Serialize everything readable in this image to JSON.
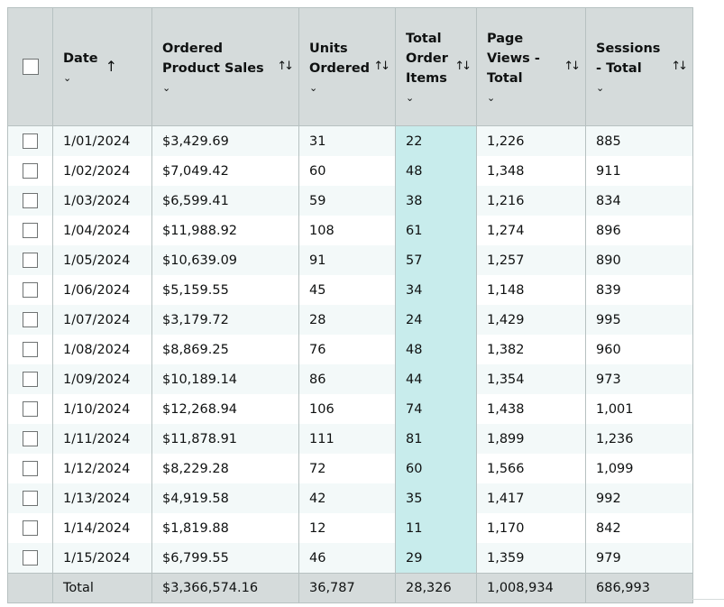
{
  "columns": [
    {
      "label": "Date",
      "sort": "asc"
    },
    {
      "label": "Ordered Product Sales",
      "sort": "both"
    },
    {
      "label": "Units Ordered",
      "sort": "both"
    },
    {
      "label": "Total Order Items",
      "sort": "both"
    },
    {
      "label": "Page Views - Total",
      "sort": "both"
    },
    {
      "label": "Sessions - Total",
      "sort": "both"
    }
  ],
  "icons": {
    "chevron": "chevron-down-icon",
    "sort_asc": "arrow-up-icon",
    "sort_both": "sort-arrows-icon"
  },
  "colors": {
    "header_bg": "#d5dbdb",
    "row_alt_bg": "#f3f9f9",
    "highlight_col": "#c8ecec"
  },
  "rows": [
    [
      "1/01/2024",
      "$3,429.69",
      "31",
      "22",
      "1,226",
      "885"
    ],
    [
      "1/02/2024",
      "$7,049.42",
      "60",
      "48",
      "1,348",
      "911"
    ],
    [
      "1/03/2024",
      "$6,599.41",
      "59",
      "38",
      "1,216",
      "834"
    ],
    [
      "1/04/2024",
      "$11,988.92",
      "108",
      "61",
      "1,274",
      "896"
    ],
    [
      "1/05/2024",
      "$10,639.09",
      "91",
      "57",
      "1,257",
      "890"
    ],
    [
      "1/06/2024",
      "$5,159.55",
      "45",
      "34",
      "1,148",
      "839"
    ],
    [
      "1/07/2024",
      "$3,179.72",
      "28",
      "24",
      "1,429",
      "995"
    ],
    [
      "1/08/2024",
      "$8,869.25",
      "76",
      "48",
      "1,382",
      "960"
    ],
    [
      "1/09/2024",
      "$10,189.14",
      "86",
      "44",
      "1,354",
      "973"
    ],
    [
      "1/10/2024",
      "$12,268.94",
      "106",
      "74",
      "1,438",
      "1,001"
    ],
    [
      "1/11/2024",
      "$11,878.91",
      "111",
      "81",
      "1,899",
      "1,236"
    ],
    [
      "1/12/2024",
      "$8,229.28",
      "72",
      "60",
      "1,566",
      "1,099"
    ],
    [
      "1/13/2024",
      "$4,919.58",
      "42",
      "35",
      "1,417",
      "992"
    ],
    [
      "1/14/2024",
      "$1,819.88",
      "12",
      "11",
      "1,170",
      "842"
    ],
    [
      "1/15/2024",
      "$6,799.55",
      "46",
      "29",
      "1,359",
      "979"
    ]
  ],
  "totals": [
    "Total",
    "$3,366,574.16",
    "36,787",
    "28,326",
    "1,008,934",
    "686,993"
  ]
}
